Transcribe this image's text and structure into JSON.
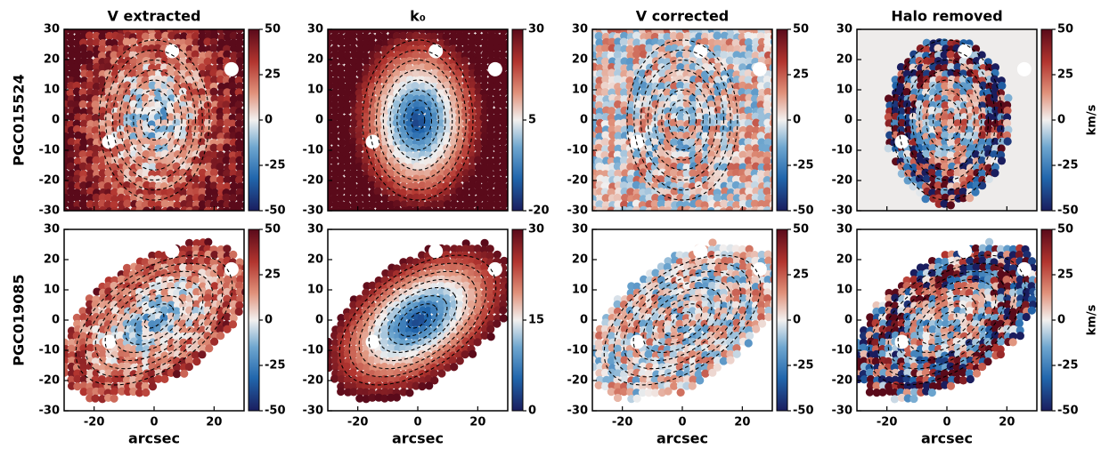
{
  "chart_data": [
    {
      "type": "heatmap",
      "title": "V extracted",
      "ylabel": "PGC015524",
      "xlim": [
        -30,
        30
      ],
      "ylim": [
        -30,
        30
      ],
      "xticks": [
        -20,
        0,
        20
      ],
      "yticks": [
        -30,
        -20,
        -10,
        0,
        10,
        20,
        30
      ],
      "clim": [
        -50,
        50
      ],
      "cticks": [
        -50,
        -25,
        0,
        25,
        50
      ]
    },
    {
      "type": "heatmap",
      "title": "k₀",
      "xlim": [
        -30,
        30
      ],
      "ylim": [
        -30,
        30
      ],
      "xticks": [
        -20,
        0,
        20
      ],
      "yticks": [
        -30,
        -20,
        -10,
        0,
        10,
        20,
        30
      ],
      "clim": [
        -20,
        30
      ],
      "cticks": [
        -20,
        5,
        30
      ]
    },
    {
      "type": "heatmap",
      "title": "V corrected",
      "xlim": [
        -30,
        30
      ],
      "ylim": [
        -30,
        30
      ],
      "xticks": [
        -20,
        0,
        20
      ],
      "yticks": [
        -30,
        -20,
        -10,
        0,
        10,
        20,
        30
      ],
      "clim": [
        -50,
        50
      ],
      "cticks": [
        -50,
        -25,
        0,
        25,
        50
      ]
    },
    {
      "type": "heatmap",
      "title": "Halo removed",
      "colorbar_label": "km/s",
      "xlim": [
        -30,
        30
      ],
      "ylim": [
        -30,
        30
      ],
      "xticks": [
        -20,
        0,
        20
      ],
      "yticks": [
        -30,
        -20,
        -10,
        0,
        10,
        20,
        30
      ],
      "clim": [
        -50,
        50
      ],
      "cticks": [
        -50,
        -25,
        0,
        25,
        50
      ]
    },
    {
      "type": "heatmap",
      "ylabel": "PGC019085",
      "xlabel": "arcsec",
      "xlim": [
        -30,
        30
      ],
      "ylim": [
        -30,
        30
      ],
      "xticks": [
        -20,
        0,
        20
      ],
      "yticks": [
        -30,
        -20,
        -10,
        0,
        10,
        20,
        30
      ],
      "clim": [
        -50,
        50
      ],
      "cticks": [
        -50,
        -25,
        0,
        25,
        50
      ]
    },
    {
      "type": "heatmap",
      "xlabel": "arcsec",
      "xlim": [
        -30,
        30
      ],
      "ylim": [
        -30,
        30
      ],
      "xticks": [
        -20,
        0,
        20
      ],
      "yticks": [
        -30,
        -20,
        -10,
        0,
        10,
        20,
        30
      ],
      "clim": [
        0,
        30
      ],
      "cticks": [
        0,
        15,
        30
      ]
    },
    {
      "type": "heatmap",
      "xlabel": "arcsec",
      "xlim": [
        -30,
        30
      ],
      "ylim": [
        -30,
        30
      ],
      "xticks": [
        -20,
        0,
        20
      ],
      "yticks": [
        -30,
        -20,
        -10,
        0,
        10,
        20,
        30
      ],
      "clim": [
        -50,
        50
      ],
      "cticks": [
        -50,
        -25,
        0,
        25,
        50
      ]
    },
    {
      "type": "heatmap",
      "xlabel": "arcsec",
      "colorbar_label": "km/s",
      "xlim": [
        -30,
        30
      ],
      "ylim": [
        -30,
        30
      ],
      "xticks": [
        -20,
        0,
        20
      ],
      "yticks": [
        -30,
        -20,
        -10,
        0,
        10,
        20,
        30
      ],
      "clim": [
        -50,
        50
      ],
      "cticks": [
        -50,
        -25,
        0,
        25,
        50
      ]
    }
  ]
}
